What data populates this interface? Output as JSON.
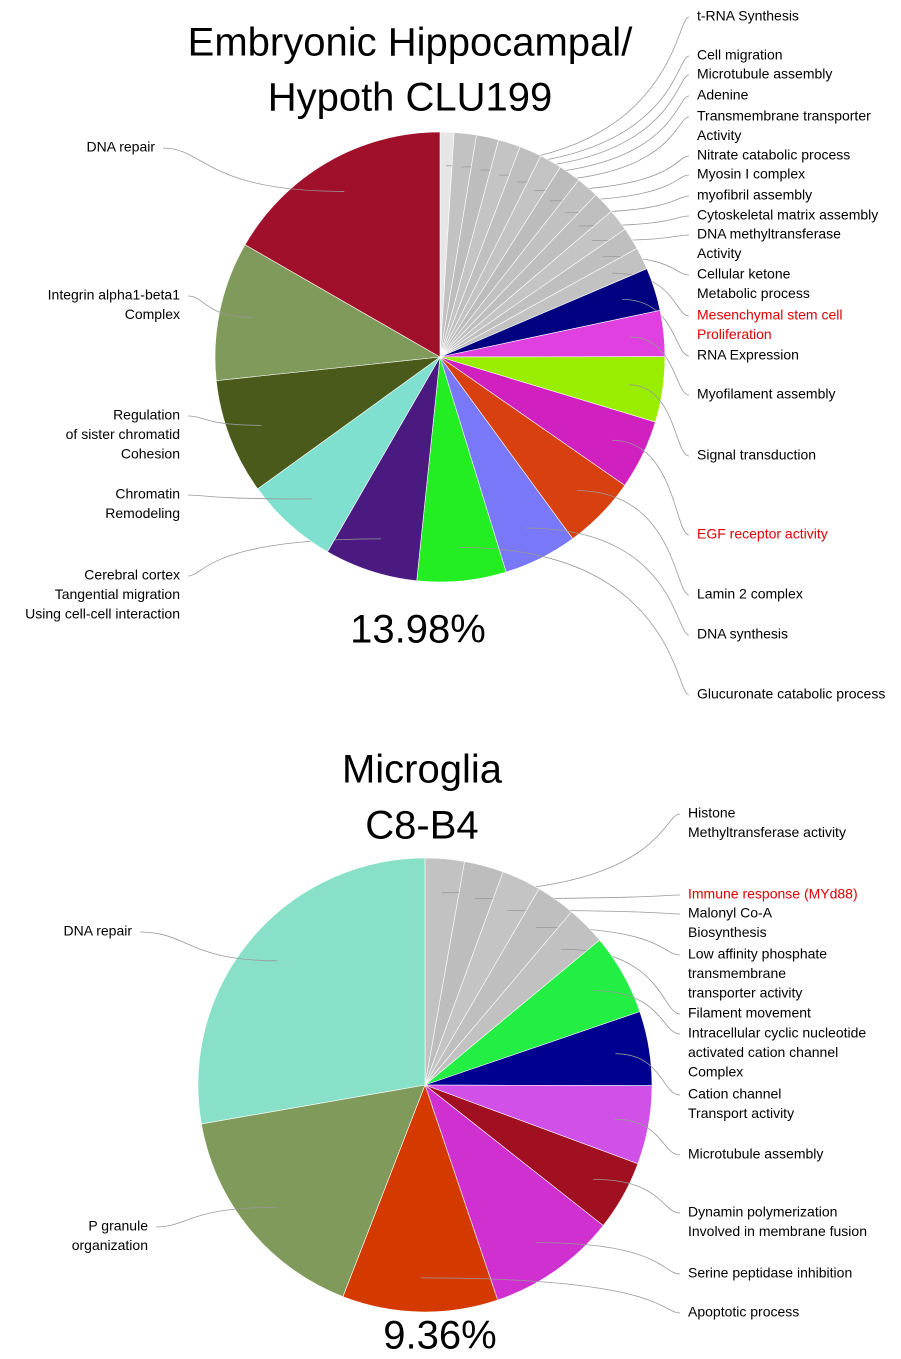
{
  "chart_data": [
    {
      "type": "pie",
      "title": [
        "Embryonic Hippocampal/",
        "Hypoth CLU199"
      ],
      "annotation": "13.98%",
      "categories": [
        [
          "t-RNA Synthesis"
        ],
        [
          "Cell migration"
        ],
        [
          "Microtubule assembly"
        ],
        [
          "Adenine"
        ],
        [
          "Transmembrane transporter",
          "Activity"
        ],
        [
          "Nitrate catabolic process"
        ],
        [
          "Myosin I complex"
        ],
        [
          "myofibril assembly"
        ],
        [
          "Cytoskeletal matrix assembly"
        ],
        [
          "DNA methyltransferase",
          "Activity"
        ],
        [
          "Cellular ketone",
          "Metabolic process"
        ],
        [
          "Mesenchymal stem cell",
          "Proliferation"
        ],
        [
          "RNA Expression"
        ],
        [
          "Myofilament assembly"
        ],
        [
          "Signal transduction"
        ],
        [
          "EGF receptor activity"
        ],
        [
          "Lamin 2 complex"
        ],
        [
          "DNA synthesis"
        ],
        [
          "Glucuronate catabolic process"
        ],
        [
          "Cerebral cortex",
          "Tangential migration",
          "Using cell-cell interaction"
        ],
        [
          "Chromatin",
          "Remodeling"
        ],
        [
          "Regulation",
          "of sister chromatid",
          "Cohesion"
        ],
        [
          "Integrin alpha1-beta1",
          "Complex"
        ],
        [
          "DNA repair"
        ]
      ],
      "values": [
        1.0,
        1.6,
        1.6,
        1.6,
        1.6,
        1.6,
        1.6,
        1.6,
        1.6,
        1.6,
        1.6,
        1.6,
        3.1,
        3.3,
        4.7,
        5.0,
        5.3,
        5.3,
        6.4,
        6.7,
        6.7,
        8.3,
        10,
        16.7
      ],
      "colors": [
        "#e6e6e6",
        "#c2c2c2",
        "#bdbdbd",
        "#c4c4c4",
        "#bfbfbf",
        "#c3c3c3",
        "#bcbcbc",
        "#c1c1c1",
        "#bebebe",
        "#c4c4c4",
        "#bfbfbf",
        "#c2c2c2",
        "#000080",
        "#e040e0",
        "#99ee00",
        "#d020c0",
        "#d84010",
        "#7878f8",
        "#22ee22",
        "#4b1a80",
        "#80e0d0",
        "#4a5a1a",
        "#7f9a5a",
        "#a0102a"
      ],
      "label_colors": [
        "#000",
        "#000",
        "#000",
        "#000",
        "#000",
        "#000",
        "#000",
        "#000",
        "#000",
        "#000",
        "#000",
        "#e00000",
        "#000",
        "#000",
        "#000",
        "#e00000",
        "#000",
        "#000",
        "#000",
        "#000",
        "#000",
        "#000",
        "#000",
        "#000"
      ]
    },
    {
      "type": "pie",
      "title": [
        "Microglia",
        "C8-B4"
      ],
      "annotation": "9.36%",
      "categories": [
        [
          "Histone",
          "Methyltransferase activity"
        ],
        [
          "Immune response (MYd88)"
        ],
        [
          "Malonyl Co-A",
          "Biosynthesis"
        ],
        [
          "Low affinity phosphate",
          " transmembrane",
          "transporter activity"
        ],
        [
          "Filament movement"
        ],
        [
          "Intracellular cyclic nucleotide",
          "activated cation channel",
          "Complex"
        ],
        [
          "Cation channel",
          "Transport activity"
        ],
        [
          "Microtubule assembly"
        ],
        [
          "Dynamin polymerization",
          "Involved in membrane fusion"
        ],
        [
          "Serine peptidase inhibition"
        ],
        [
          "Apoptotic process"
        ],
        [
          "P granule",
          "organization"
        ],
        [
          "DNA repair"
        ]
      ],
      "values": [
        2.8,
        2.8,
        2.8,
        2.8,
        2.8,
        5.8,
        5.3,
        5.6,
        5.0,
        9.2,
        11.1,
        16.4,
        27.8
      ],
      "colors": [
        "#c2c2c2",
        "#bdbdbd",
        "#c4c4c4",
        "#bfbfbf",
        "#c1c1c1",
        "#22ee44",
        "#000090",
        "#d050e8",
        "#a01020",
        "#d030d0",
        "#d43a00",
        "#7f9a5a",
        "#88e0c8"
      ],
      "label_colors": [
        "#000",
        "#e00000",
        "#000",
        "#000",
        "#000",
        "#000",
        "#000",
        "#000",
        "#000",
        "#000",
        "#000",
        "#000",
        "#000"
      ]
    }
  ]
}
